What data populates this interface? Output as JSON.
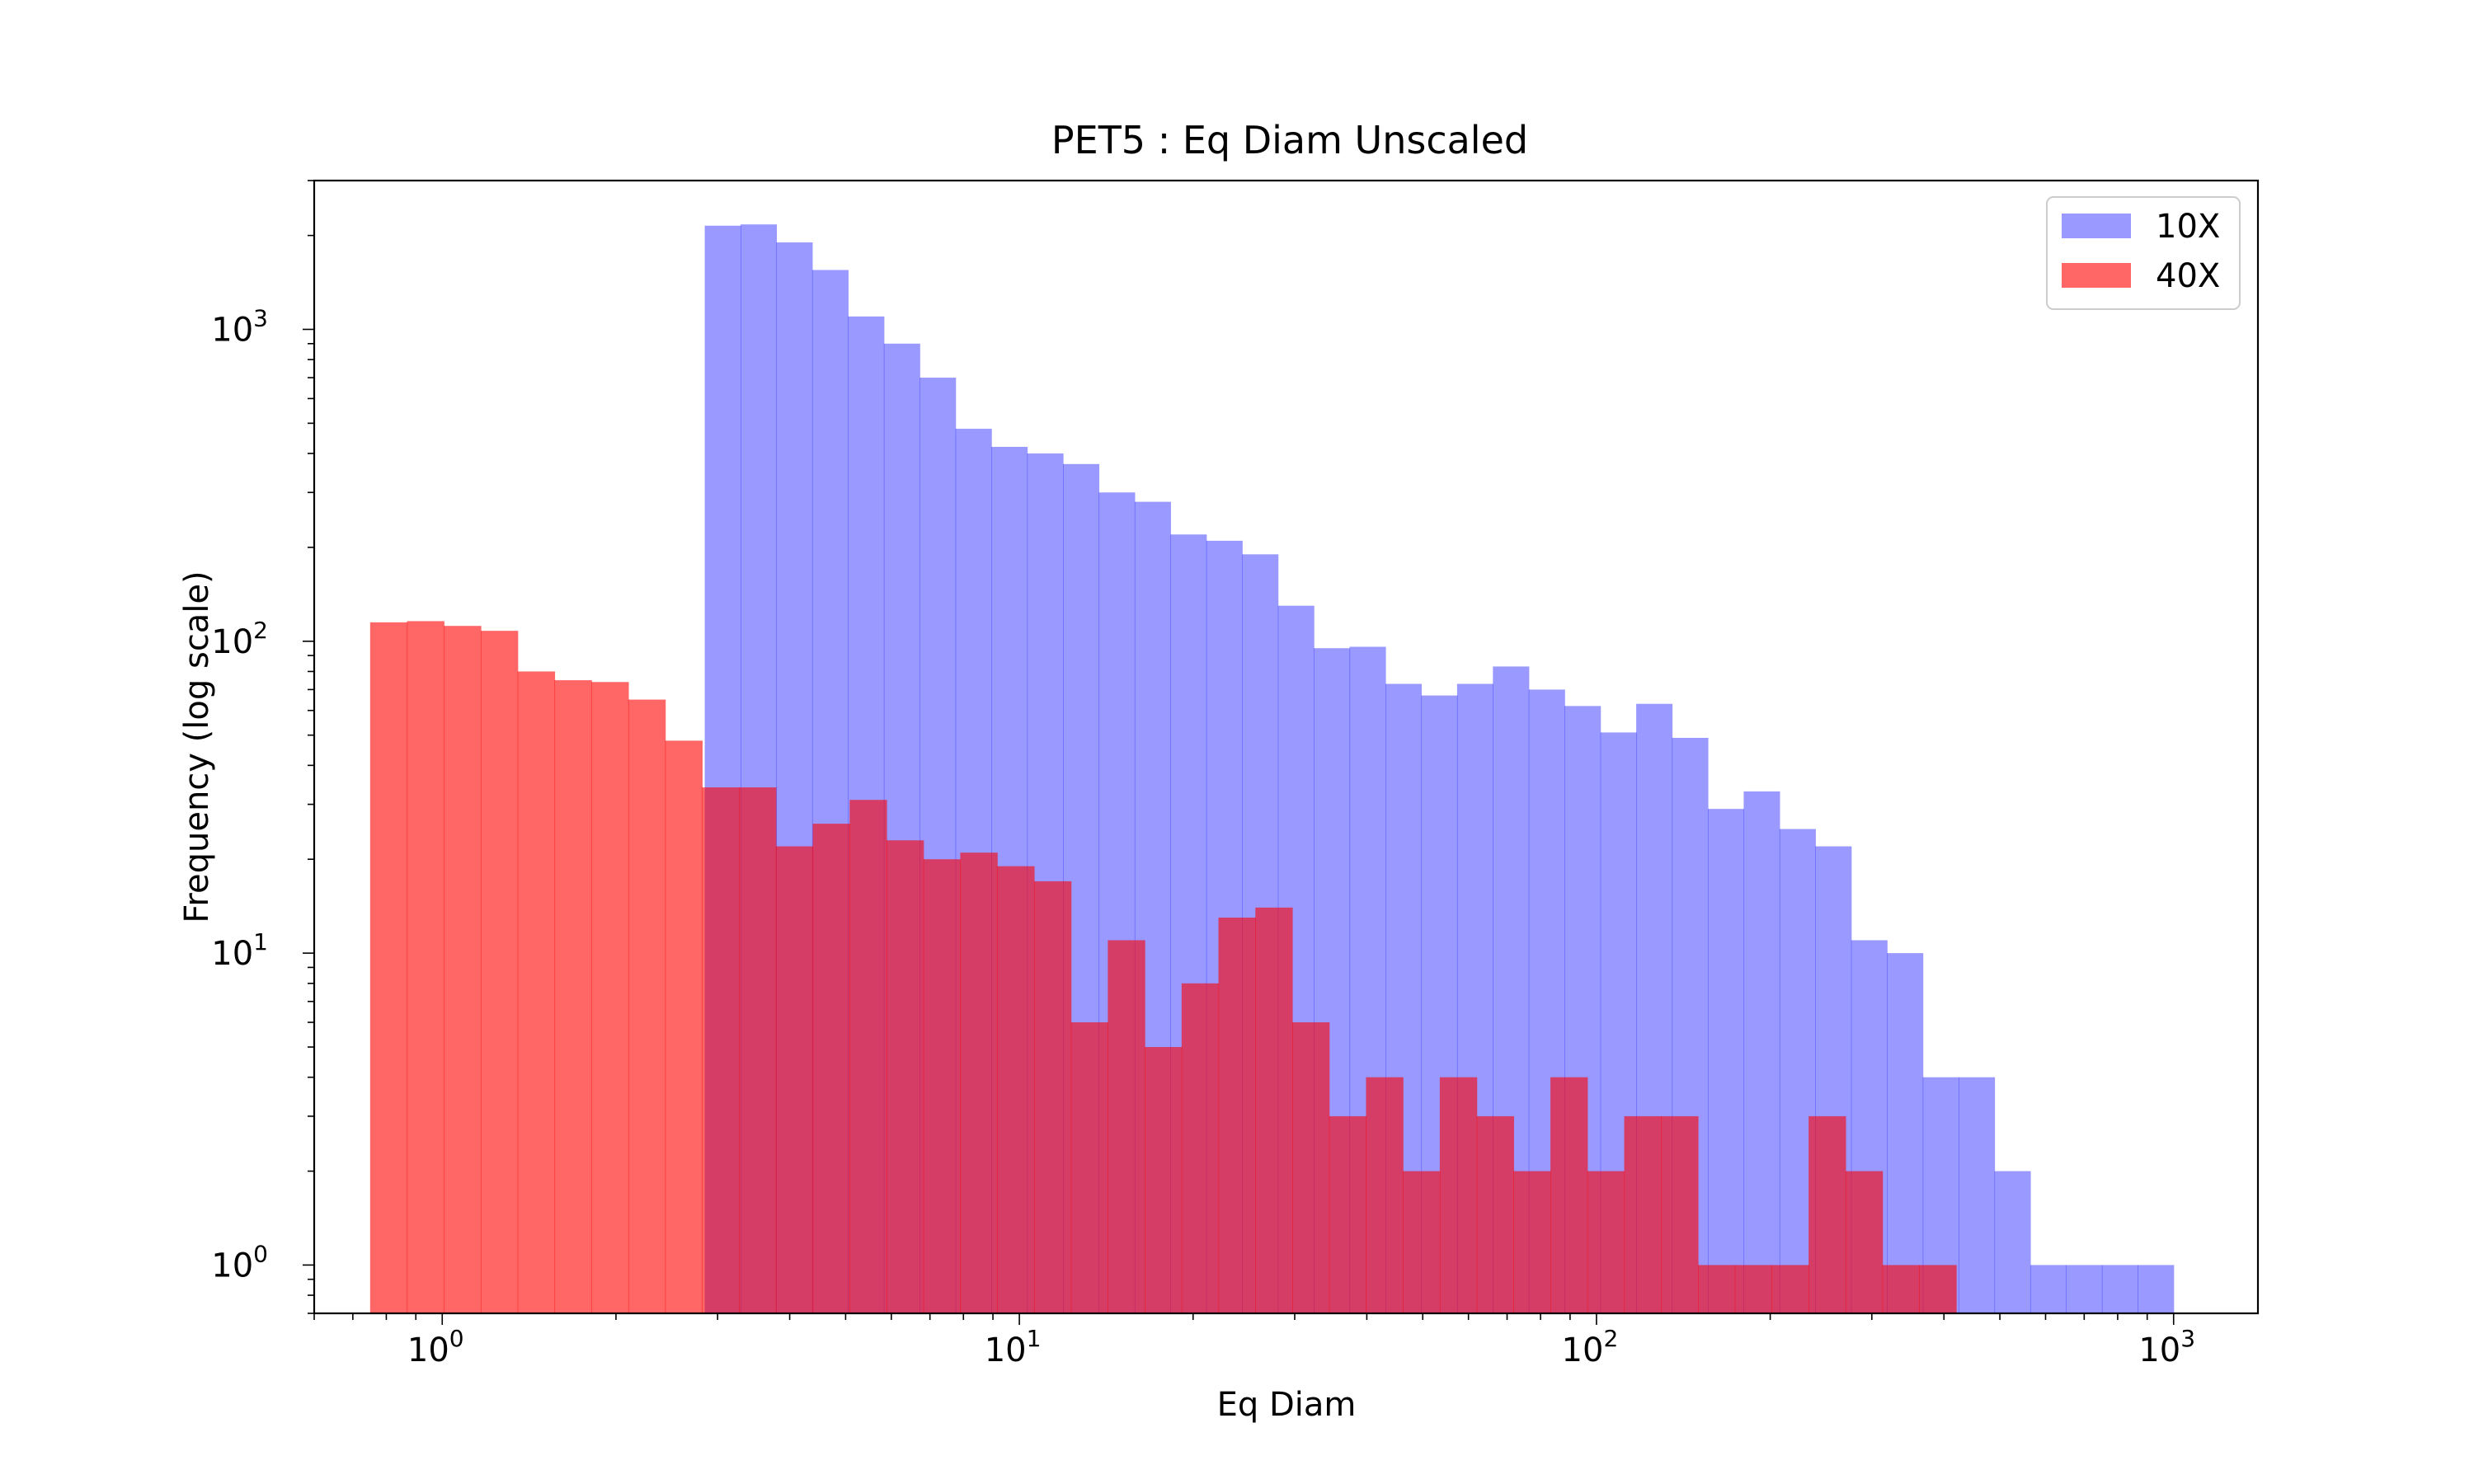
{
  "chart_data": {
    "type": "bar",
    "title": "PET5 : Eq Diam Unscaled",
    "xlabel": "Eq Diam",
    "ylabel": "Frequency (log scale)",
    "xscale": "log",
    "yscale": "log",
    "xlim": [
      0.6,
      1400
    ],
    "ylim": [
      0.7,
      3000
    ],
    "x_ticks": [
      1,
      10,
      100,
      1000
    ],
    "x_tick_labels": [
      {
        "base": "10",
        "exp": "0"
      },
      {
        "base": "10",
        "exp": "1"
      },
      {
        "base": "10",
        "exp": "2"
      },
      {
        "base": "10",
        "exp": "3"
      }
    ],
    "y_ticks": [
      1,
      10,
      100,
      1000
    ],
    "y_tick_labels": [
      {
        "base": "10",
        "exp": "0"
      },
      {
        "base": "10",
        "exp": "1"
      },
      {
        "base": "10",
        "exp": "2"
      },
      {
        "base": "10",
        "exp": "3"
      }
    ],
    "grid": false,
    "legend_position": "top-right",
    "series": [
      {
        "name": "10X",
        "color": "#0000ff",
        "opacity": 0.4,
        "bin_start": 2.85,
        "bin_end": 1000,
        "values": [
          2150,
          2170,
          1900,
          1550,
          1100,
          900,
          700,
          480,
          420,
          400,
          370,
          300,
          280,
          220,
          210,
          190,
          130,
          95,
          96,
          73,
          67,
          73,
          83,
          70,
          62,
          51,
          63,
          49,
          29,
          33,
          25,
          22,
          11,
          10,
          4,
          4,
          2,
          1,
          1,
          1,
          1
        ]
      },
      {
        "name": "40X",
        "color": "#ff0000",
        "opacity": 0.6,
        "bin_start": 0.75,
        "bin_end": 420,
        "values": [
          115,
          116,
          112,
          108,
          80,
          75,
          74,
          65,
          48,
          34,
          34,
          22,
          26,
          31,
          23,
          20,
          21,
          19,
          17,
          6,
          11,
          5,
          8,
          13,
          14,
          6,
          3,
          4,
          2,
          4,
          3,
          2,
          4,
          2,
          3,
          3,
          1,
          1,
          1,
          3,
          2,
          1,
          1
        ]
      }
    ]
  }
}
